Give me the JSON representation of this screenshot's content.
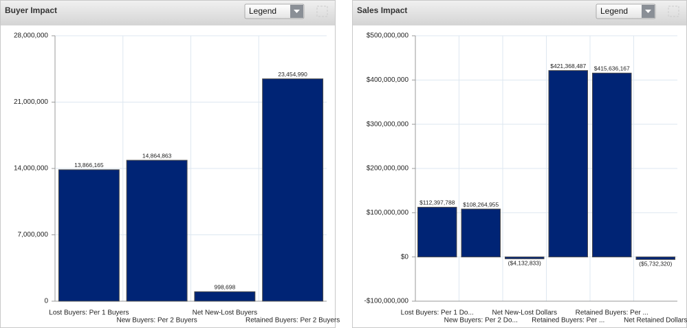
{
  "chart_data": [
    {
      "type": "bar",
      "title": "Buyer Impact",
      "legend_button": "Legend",
      "categories": [
        "Lost Buyers: Per 1 Buyers",
        "New Buyers: Per 2 Buyers",
        "Net New-Lost Buyers",
        "Retained Buyers: Per 2 Buyers"
      ],
      "values": [
        13866165,
        14864863,
        998698,
        23454990
      ],
      "value_labels": [
        "13,866,165",
        "14,864,863",
        "998,698",
        "23,454,990"
      ],
      "color": "#002475",
      "ylim": [
        0,
        28000000
      ],
      "yticks": [
        0,
        {
          "value": 7000000,
          "label": "7,000,000"
        },
        {
          "value": 14000000,
          "label": "14,000,000"
        },
        {
          "value": 21000000,
          "label": "21,000,000"
        },
        {
          "value": 28000000,
          "label": "28,000,000"
        }
      ],
      "grid": true
    },
    {
      "type": "bar",
      "title": "Sales Impact",
      "legend_button": "Legend",
      "categories": [
        "Lost Buyers: Per 1 Do...",
        "New Buyers: Per 2 Do...",
        "Net New-Lost Dollars",
        "Retained Buyers: Per ...",
        "Retained Buyers: Per ...",
        "Net Retained Dollars"
      ],
      "values": [
        112397788,
        108264955,
        -4132833,
        421368487,
        415636167,
        -5732320
      ],
      "value_labels": [
        "$112,397,788",
        "$108,264,955",
        "($4,132,833)",
        "$421,368,487",
        "$415,636,167",
        "($5,732,320)"
      ],
      "color": "#002475",
      "ylim": [
        -100000000,
        500000000
      ],
      "yticks": [
        {
          "value": -100000000,
          "label": "-$100,000,000"
        },
        {
          "value": 0,
          "label": "$0"
        },
        {
          "value": 100000000,
          "label": "$100,000,000"
        },
        {
          "value": 200000000,
          "label": "$200,000,000"
        },
        {
          "value": 300000000,
          "label": "$300,000,000"
        },
        {
          "value": 400000000,
          "label": "$400,000,000"
        },
        {
          "value": 500000000,
          "label": "$500,000,000"
        }
      ],
      "grid": true
    }
  ]
}
